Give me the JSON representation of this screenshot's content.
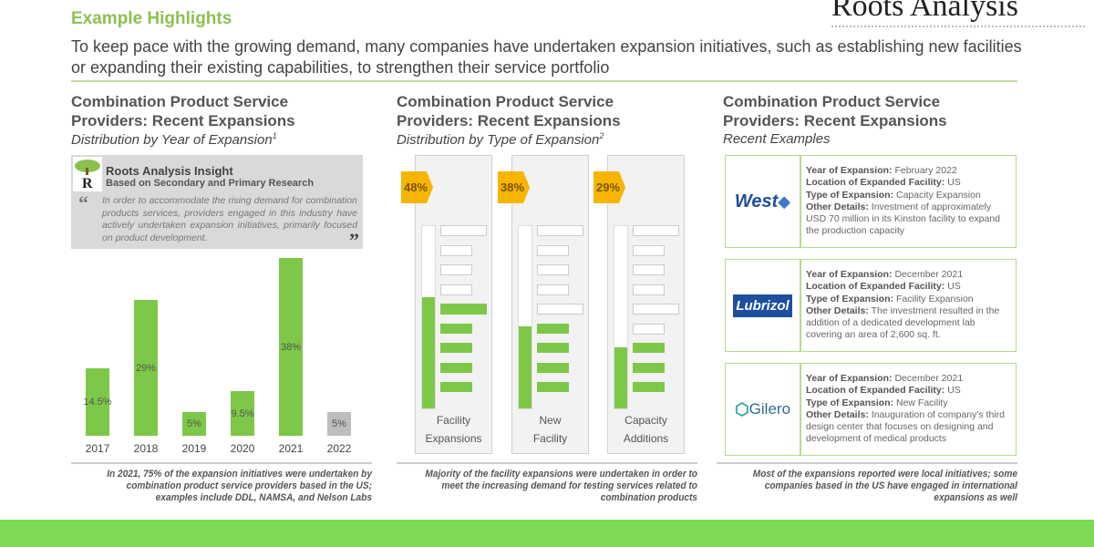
{
  "header": {
    "title": "Example Highlights",
    "brand": "Roots Analysis",
    "subtitle": "To keep pace with the growing demand, many companies have undertaken expansion initiatives, such as establishing new facilities or expanding their existing capabilities, to strengthen their service portfolio"
  },
  "columns": [
    {
      "heading": "Combination Product Service Providers: Recent Expansions",
      "sub": "Distribution by Year of Expansion",
      "footnote": "1",
      "note": "In 2021, 75% of the expansion initiatives were undertaken by combination product service providers based in the US; examples include DDL, NAMSA, and Nelson Labs"
    },
    {
      "heading": "Combination Product Service Providers: Recent Expansions",
      "sub": "Distribution by Type of Expansion",
      "footnote": "2",
      "note": "Majority of the facility expansions were undertaken in order to meet the increasing demand for testing services related to combination products"
    },
    {
      "heading": "Combination Product Service Providers: Recent Expansions",
      "sub": "Recent Examples",
      "note": "Most of the expansions reported were local initiatives; some companies based in the US have engaged in international expansions as well"
    }
  ],
  "insight": {
    "title": "Roots Analysis Insight",
    "subtitle": "Based on Secondary and Primary Research",
    "quote": "In order to accommodate the rising demand for combination products services, providers engaged in this industry have actively undertaken expansion initiatives, primarily focused on product development.",
    "open_quote": "“",
    "close_quote": "”"
  },
  "chart_data": [
    {
      "type": "bar",
      "categories": [
        "2017",
        "2018",
        "2019",
        "2020",
        "2021",
        "2022"
      ],
      "values": [
        14.5,
        29,
        5,
        9.5,
        38,
        5
      ],
      "labels": [
        "14.5%",
        "29%",
        "5%",
        "9.5%",
        "38%",
        "5%"
      ],
      "colors": [
        "#7dc848",
        "#7dc848",
        "#7dc848",
        "#7dc848",
        "#7dc848",
        "#bdbdbd"
      ],
      "ylim": [
        0,
        38
      ]
    },
    {
      "type": "bar",
      "categories": [
        "Facility Expansions",
        "New Facility",
        "Capacity Additions"
      ],
      "label_lines": [
        [
          "Facility",
          "Expansions"
        ],
        [
          "New",
          "Facility"
        ],
        [
          "Capacity",
          "Additions"
        ]
      ],
      "values": [
        48,
        38,
        29
      ],
      "labels": [
        "48%",
        "38%",
        "29%"
      ],
      "filled_segments": [
        5,
        4,
        3
      ],
      "total_segments": 9,
      "badge_color": "#f7b500"
    }
  ],
  "examples": [
    {
      "company": "West",
      "year": "February 2022",
      "location": "US",
      "type": "Capacity Expansion",
      "details": "Investment of approximately USD 70 million in its Kinston facility to expand the production capacity"
    },
    {
      "company": "Lubrizol",
      "year": "December 2021",
      "location": "US",
      "type": "Facility Expansion",
      "details": "The investment resulted in the addition of a dedicated development lab covering an area of 2,600 sq. ft."
    },
    {
      "company": "Gilero",
      "year": "December 2021",
      "location": "US",
      "type": "New Facility",
      "details": "Inauguration of company's third design center that focuses on designing and development of medical products"
    }
  ],
  "example_labels": {
    "year": "Year of Expansion:",
    "location": "Location of Expanded Facility:",
    "type": "Type of Expansion:",
    "details": "Other Details:"
  },
  "colors": {
    "accent": "#8cc152",
    "bar": "#7dc848",
    "band": "#7ed957"
  }
}
